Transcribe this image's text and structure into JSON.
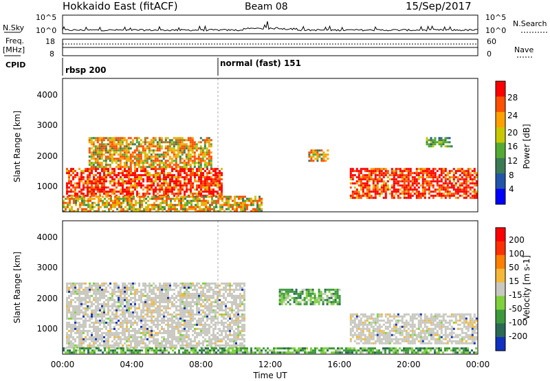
{
  "header": {
    "title": "Hokkaido East (fitACF)",
    "beam": "Beam 08",
    "date": "15/Sep/2017"
  },
  "top_panels": {
    "nsky_label": "N.Sky",
    "nsky_ticks": [
      "10^5",
      "10^0"
    ],
    "nsearch_label": "N.Search",
    "nsearch_ticks": [
      "10^5",
      "10^0"
    ],
    "freq_label_1": "Freq.",
    "freq_label_2": "[MHz]",
    "freq_ticks": [
      "18",
      "8"
    ],
    "nave_label": "Nave",
    "nave_ticks": [
      "60",
      "0"
    ],
    "cpid_label": "CPID",
    "cpid_modes": [
      {
        "label": "rbsp 200",
        "start_hour": 0
      },
      {
        "label": "normal (fast) 151",
        "start_hour": 9
      }
    ]
  },
  "chart_data": [
    {
      "type": "heatmap",
      "ylabel": "Slant Range [km]",
      "y_ticks": [
        "4000",
        "3000",
        "2000",
        "1000"
      ],
      "ylim": [
        180,
        4500
      ],
      "colorbar_label": "Power [dB]",
      "colorbar_ticks": [
        "28",
        "24",
        "20",
        "16",
        "12",
        "8",
        "4"
      ],
      "colorbar_colors": [
        "#0000ff",
        "#2255aa",
        "#3a7a55",
        "#55aa33",
        "#c8c800",
        "#ffa000",
        "#ff5000",
        "#ff0000"
      ],
      "regions": [
        {
          "t": [
            0.2,
            9.2
          ],
          "r": [
            700,
            1600
          ],
          "level": "high"
        },
        {
          "t": [
            1.5,
            8.6
          ],
          "r": [
            1600,
            2600
          ],
          "level": "mid"
        },
        {
          "t": [
            0.0,
            11.5
          ],
          "r": [
            200,
            700
          ],
          "level": "mid"
        },
        {
          "t": [
            14.2,
            15.3
          ],
          "r": [
            1800,
            2200
          ],
          "level": "mid"
        },
        {
          "t": [
            16.6,
            24.0
          ],
          "r": [
            600,
            1600
          ],
          "level": "high"
        },
        {
          "t": [
            21.0,
            22.5
          ],
          "r": [
            2300,
            2600
          ],
          "level": "low"
        }
      ]
    },
    {
      "type": "heatmap",
      "ylabel": "Slant Range [km]",
      "y_ticks": [
        "4000",
        "3000",
        "2000",
        "1000"
      ],
      "ylim": [
        180,
        4500
      ],
      "colorbar_label": "Velocity [m s-1]",
      "colorbar_ticks": [
        "200",
        "100",
        "50",
        "15",
        "-15",
        "-50",
        "-100",
        "-200"
      ],
      "colorbar_colors": [
        "#1030c0",
        "#2a6a55",
        "#3c9a3c",
        "#7ed13a",
        "#c8c8c0",
        "#f4b838",
        "#ff7f00",
        "#ff3000",
        "#ff0000"
      ],
      "regions": [
        {
          "t": [
            0.2,
            10.5
          ],
          "r": [
            400,
            2500
          ],
          "level": "ground"
        },
        {
          "t": [
            12.5,
            16.0
          ],
          "r": [
            1800,
            2300
          ],
          "level": "positive"
        },
        {
          "t": [
            16.6,
            24.0
          ],
          "r": [
            500,
            1500
          ],
          "level": "ground"
        },
        {
          "t": [
            0.0,
            24.0
          ],
          "r": [
            200,
            400
          ],
          "level": "positive"
        }
      ]
    }
  ],
  "time_axis": {
    "ticks": [
      "00:00",
      "04:00",
      "08:00",
      "12:00",
      "16:00",
      "20:00",
      "00:00"
    ],
    "xlabel": "Time UT"
  }
}
